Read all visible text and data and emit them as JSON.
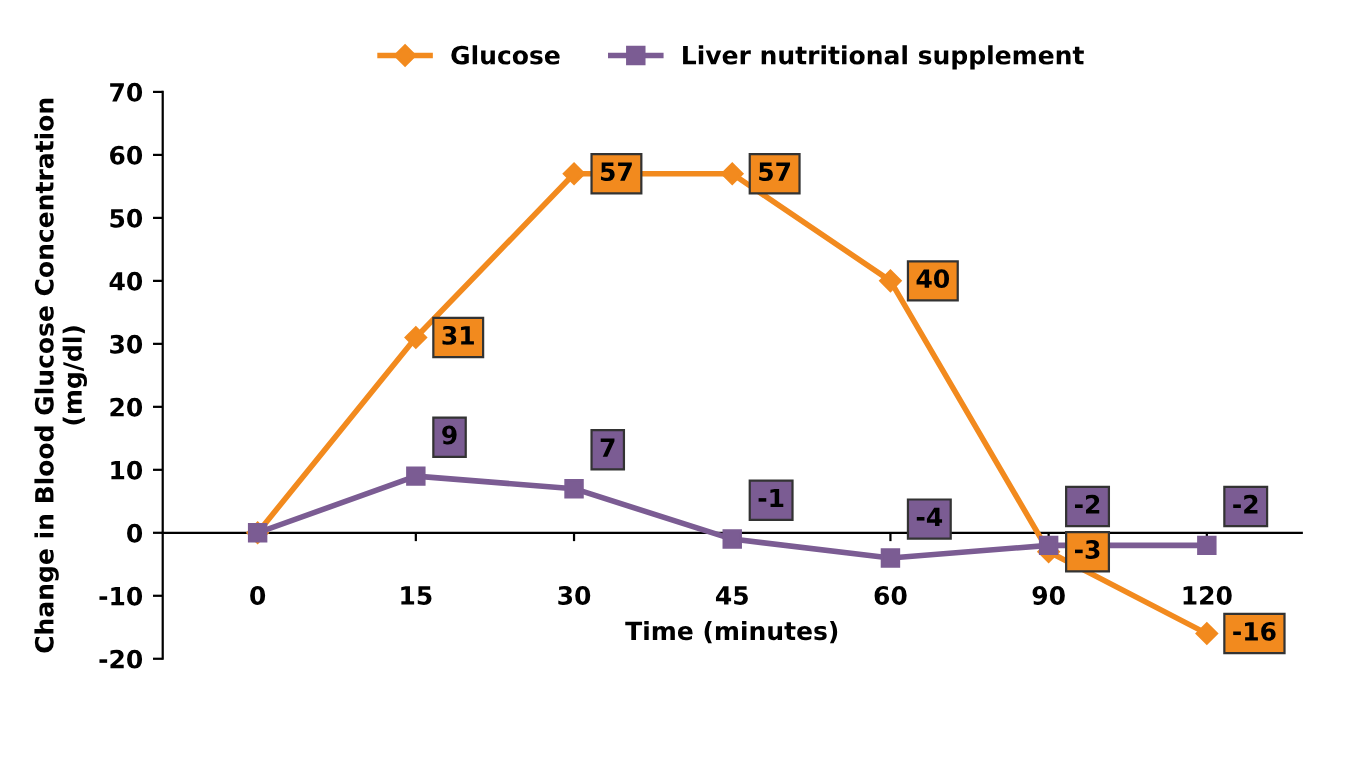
{
  "chart_data": {
    "type": "line",
    "xlabel": "Time (minutes)",
    "ylabel": "Change in Blood Glucose Concentration\n(mg/dl)",
    "categories": [
      "0",
      "15",
      "30",
      "45",
      "60",
      "90",
      "120"
    ],
    "series": [
      {
        "name": "Glucose",
        "color": "#f28a1e",
        "marker": "diamond",
        "values": [
          0,
          31,
          57,
          57,
          40,
          -3,
          -16
        ],
        "value_labels": [
          null,
          "31",
          "57",
          "57",
          "40",
          "-3",
          "-16"
        ]
      },
      {
        "name": "Liver nutritional supplement",
        "color": "#7b5c93",
        "marker": "square",
        "values": [
          0,
          9,
          7,
          -1,
          -4,
          -2,
          -2
        ],
        "value_labels": [
          null,
          "9",
          "7",
          "-1",
          "-4",
          "-2",
          "-2"
        ]
      }
    ],
    "ylim": [
      -20,
      70
    ],
    "yticks": [
      -20,
      -10,
      0,
      10,
      20,
      30,
      40,
      50,
      60,
      70
    ],
    "grid": false,
    "legend": "top",
    "line_style": "solid"
  }
}
